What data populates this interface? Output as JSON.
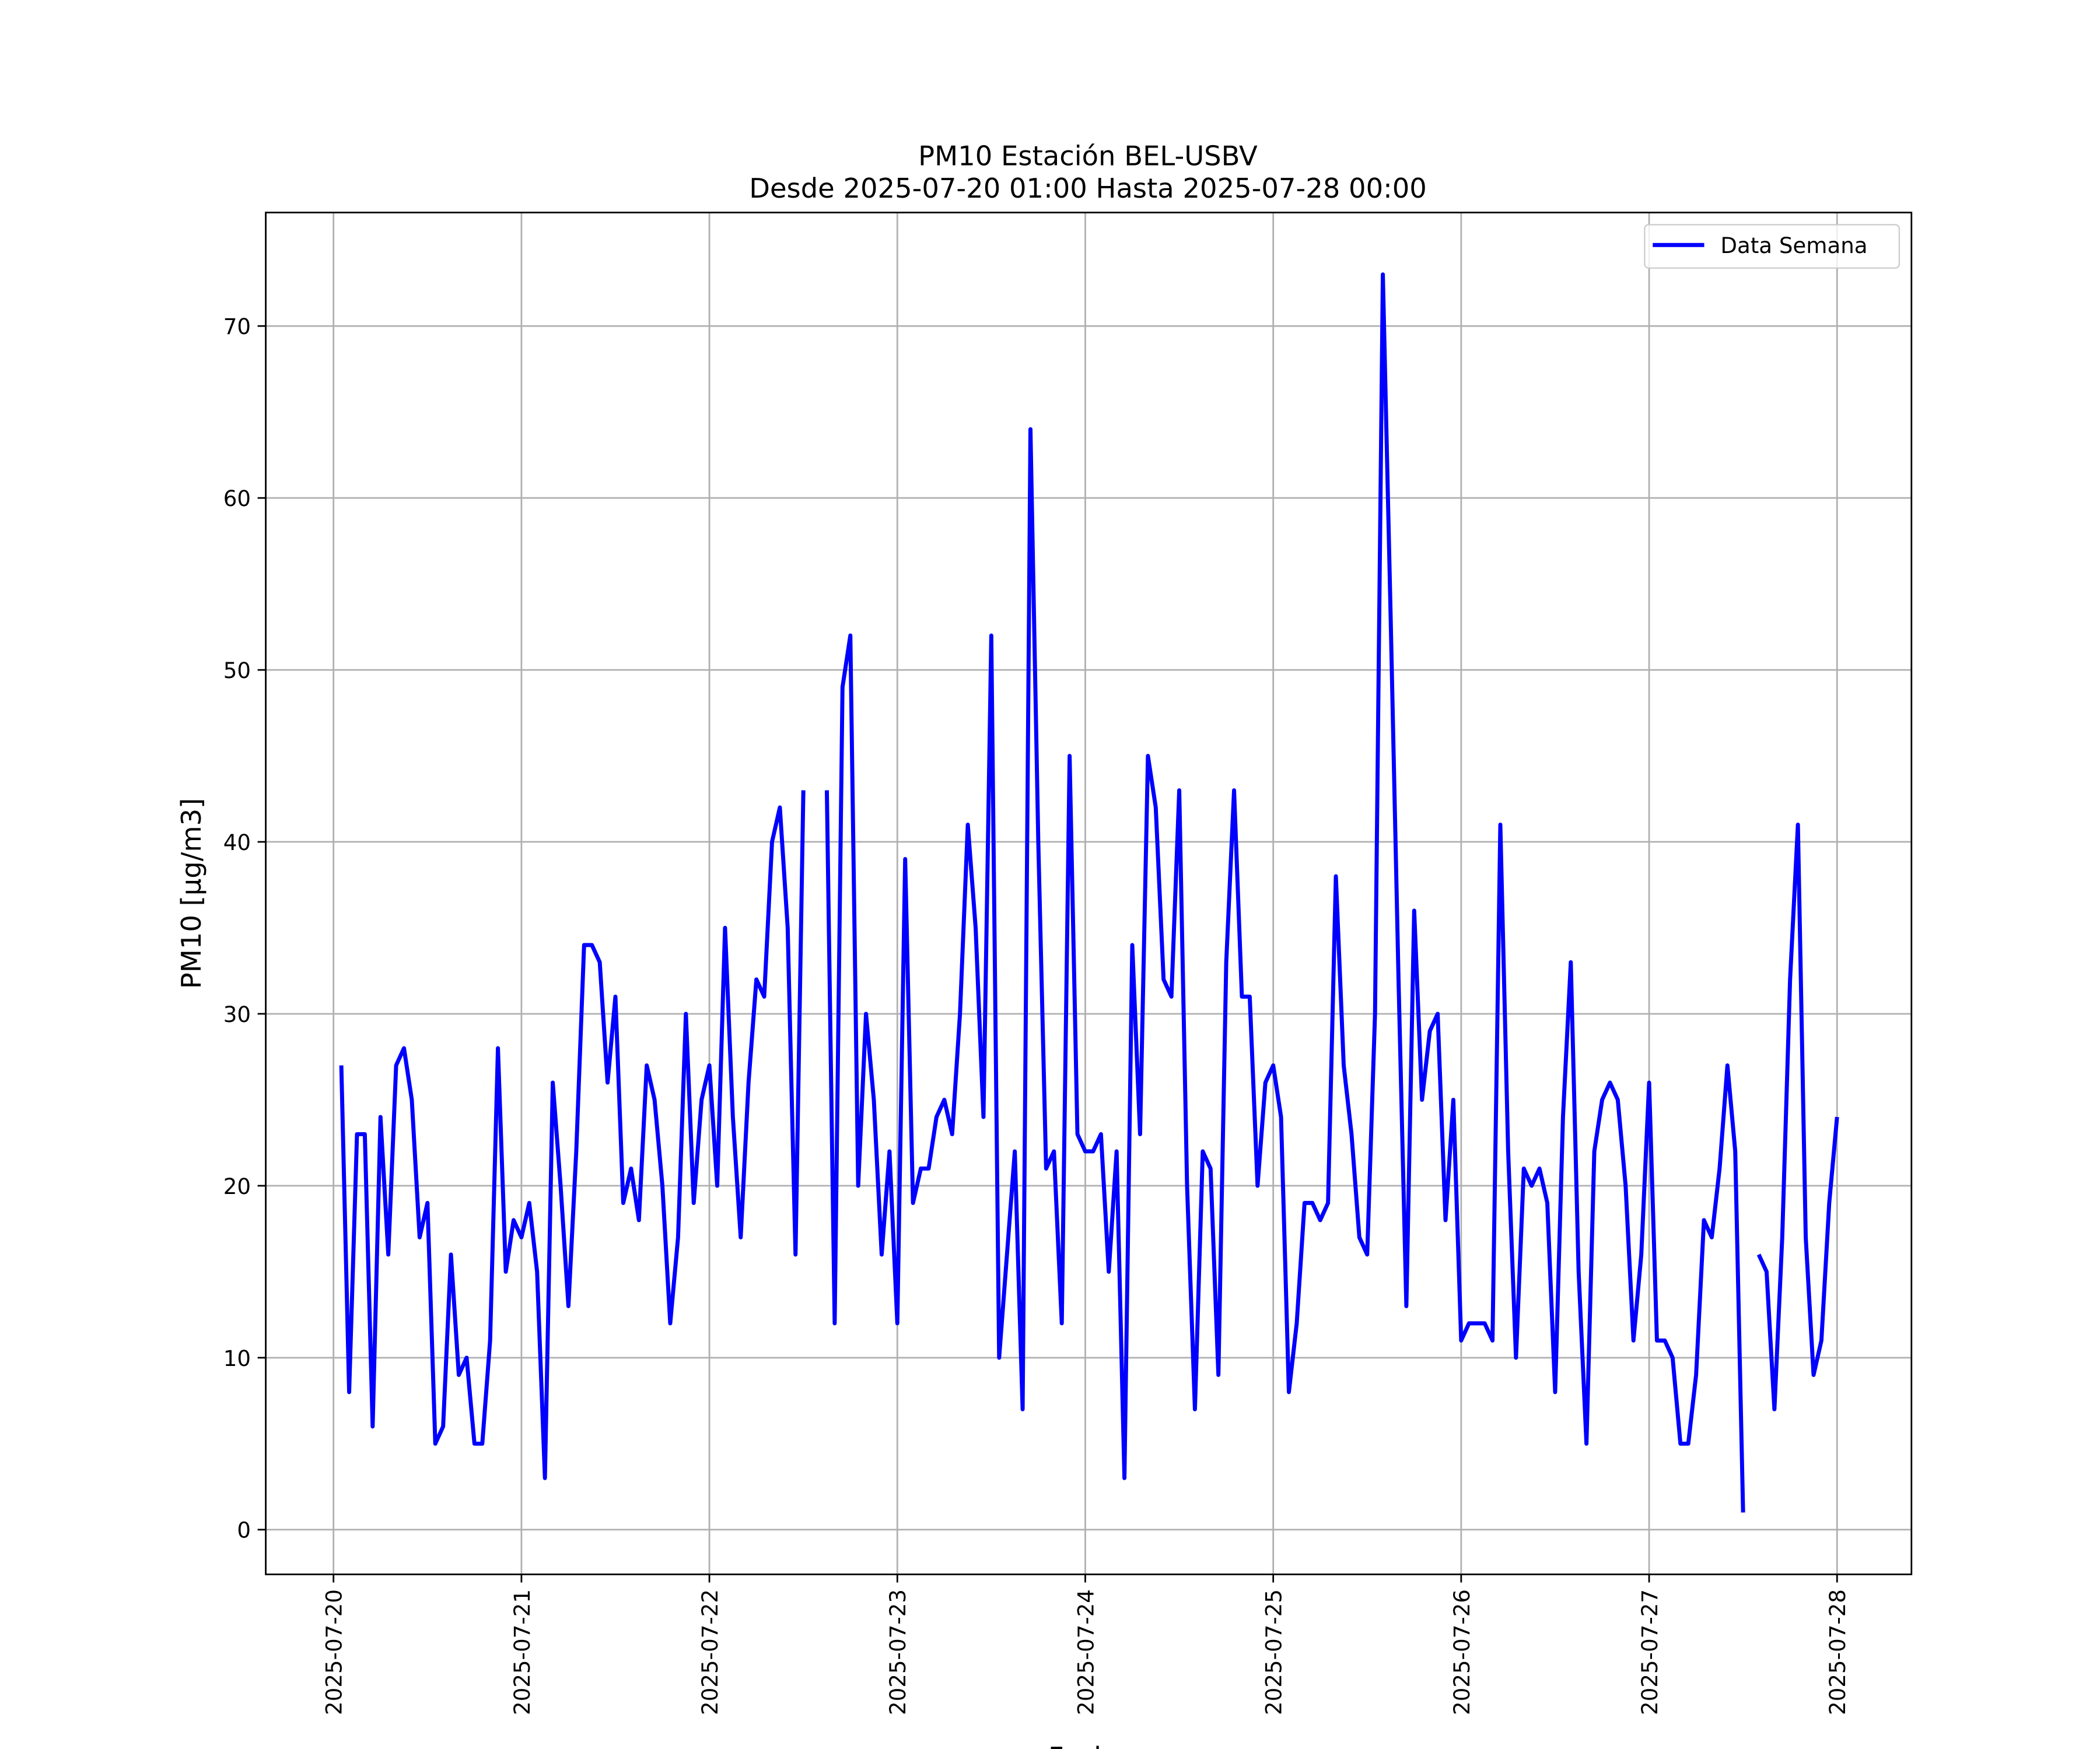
{
  "chart_data": {
    "type": "line",
    "title": "PM10 Estación BEL-USBV",
    "subtitle": "Desde 2025-07-20 01:00 Hasta 2025-07-28 00:00",
    "xlabel": "Fecha",
    "ylabel": "PM10 [μg/m3]",
    "x": [
      "2025-07-20 01:00",
      "2025-07-20 02:00",
      "2025-07-20 03:00",
      "2025-07-20 04:00",
      "2025-07-20 05:00",
      "2025-07-20 06:00",
      "2025-07-20 07:00",
      "2025-07-20 08:00",
      "2025-07-20 09:00",
      "2025-07-20 10:00",
      "2025-07-20 11:00",
      "2025-07-20 12:00",
      "2025-07-20 13:00",
      "2025-07-20 14:00",
      "2025-07-20 15:00",
      "2025-07-20 16:00",
      "2025-07-20 17:00",
      "2025-07-20 18:00",
      "2025-07-20 19:00",
      "2025-07-20 20:00",
      "2025-07-20 21:00",
      "2025-07-20 22:00",
      "2025-07-20 23:00",
      "2025-07-21 00:00",
      "2025-07-21 01:00",
      "2025-07-21 02:00",
      "2025-07-21 03:00",
      "2025-07-21 04:00",
      "2025-07-21 05:00",
      "2025-07-21 06:00",
      "2025-07-21 07:00",
      "2025-07-21 08:00",
      "2025-07-21 09:00",
      "2025-07-21 10:00",
      "2025-07-21 11:00",
      "2025-07-21 12:00",
      "2025-07-21 13:00",
      "2025-07-21 14:00",
      "2025-07-21 15:00",
      "2025-07-21 16:00",
      "2025-07-21 17:00",
      "2025-07-21 18:00",
      "2025-07-21 19:00",
      "2025-07-21 20:00",
      "2025-07-21 21:00",
      "2025-07-21 22:00",
      "2025-07-21 23:00",
      "2025-07-22 00:00",
      "2025-07-22 01:00",
      "2025-07-22 02:00",
      "2025-07-22 03:00",
      "2025-07-22 04:00",
      "2025-07-22 05:00",
      "2025-07-22 06:00",
      "2025-07-22 07:00",
      "2025-07-22 08:00",
      "2025-07-22 09:00",
      "2025-07-22 10:00",
      "2025-07-22 11:00",
      "2025-07-22 12:00",
      "2025-07-22 13:00",
      "2025-07-22 14:00",
      "2025-07-22 15:00",
      "2025-07-22 16:00",
      "2025-07-22 17:00",
      "2025-07-22 18:00",
      "2025-07-22 19:00",
      "2025-07-22 20:00",
      "2025-07-22 21:00",
      "2025-07-22 22:00",
      "2025-07-22 23:00",
      "2025-07-23 00:00",
      "2025-07-23 01:00",
      "2025-07-23 02:00",
      "2025-07-23 03:00",
      "2025-07-23 04:00",
      "2025-07-23 05:00",
      "2025-07-23 06:00",
      "2025-07-23 07:00",
      "2025-07-23 08:00",
      "2025-07-23 09:00",
      "2025-07-23 10:00",
      "2025-07-23 11:00",
      "2025-07-23 12:00",
      "2025-07-23 13:00",
      "2025-07-23 14:00",
      "2025-07-23 15:00",
      "2025-07-23 16:00",
      "2025-07-23 17:00",
      "2025-07-23 18:00",
      "2025-07-23 19:00",
      "2025-07-23 20:00",
      "2025-07-23 21:00",
      "2025-07-23 22:00",
      "2025-07-23 23:00",
      "2025-07-24 00:00",
      "2025-07-24 01:00",
      "2025-07-24 02:00",
      "2025-07-24 03:00",
      "2025-07-24 04:00",
      "2025-07-24 05:00",
      "2025-07-24 06:00",
      "2025-07-24 07:00",
      "2025-07-24 08:00",
      "2025-07-24 09:00",
      "2025-07-24 10:00",
      "2025-07-24 11:00",
      "2025-07-24 12:00",
      "2025-07-24 13:00",
      "2025-07-24 14:00",
      "2025-07-24 15:00",
      "2025-07-24 16:00",
      "2025-07-24 17:00",
      "2025-07-24 18:00",
      "2025-07-24 19:00",
      "2025-07-24 20:00",
      "2025-07-24 21:00",
      "2025-07-24 22:00",
      "2025-07-24 23:00",
      "2025-07-25 00:00",
      "2025-07-25 01:00",
      "2025-07-25 02:00",
      "2025-07-25 03:00",
      "2025-07-25 04:00",
      "2025-07-25 05:00",
      "2025-07-25 06:00",
      "2025-07-25 07:00",
      "2025-07-25 08:00",
      "2025-07-25 09:00",
      "2025-07-25 10:00",
      "2025-07-25 11:00",
      "2025-07-25 12:00",
      "2025-07-25 13:00",
      "2025-07-25 14:00",
      "2025-07-25 15:00",
      "2025-07-25 16:00",
      "2025-07-25 17:00",
      "2025-07-25 18:00",
      "2025-07-25 19:00",
      "2025-07-25 20:00",
      "2025-07-25 21:00",
      "2025-07-25 22:00",
      "2025-07-25 23:00",
      "2025-07-26 00:00",
      "2025-07-26 01:00",
      "2025-07-26 02:00",
      "2025-07-26 03:00",
      "2025-07-26 04:00",
      "2025-07-26 05:00",
      "2025-07-26 06:00",
      "2025-07-26 07:00",
      "2025-07-26 08:00",
      "2025-07-26 09:00",
      "2025-07-26 10:00",
      "2025-07-26 11:00",
      "2025-07-26 12:00",
      "2025-07-26 13:00",
      "2025-07-26 14:00",
      "2025-07-26 15:00",
      "2025-07-26 16:00",
      "2025-07-26 17:00",
      "2025-07-26 18:00",
      "2025-07-26 19:00",
      "2025-07-26 20:00",
      "2025-07-26 21:00",
      "2025-07-26 22:00",
      "2025-07-26 23:00",
      "2025-07-27 00:00",
      "2025-07-27 01:00",
      "2025-07-27 02:00",
      "2025-07-27 03:00",
      "2025-07-27 04:00",
      "2025-07-27 05:00",
      "2025-07-27 06:00",
      "2025-07-27 07:00",
      "2025-07-27 08:00",
      "2025-07-27 09:00",
      "2025-07-27 10:00",
      "2025-07-27 11:00",
      "2025-07-27 12:00",
      "2025-07-27 13:00",
      "2025-07-27 14:00",
      "2025-07-27 15:00",
      "2025-07-27 16:00",
      "2025-07-27 17:00",
      "2025-07-27 18:00",
      "2025-07-27 19:00",
      "2025-07-27 20:00",
      "2025-07-27 21:00",
      "2025-07-27 22:00",
      "2025-07-27 23:00",
      "2025-07-28 00:00"
    ],
    "series": [
      {
        "name": "Data Semana",
        "color": "#0000ff",
        "values": [
          27,
          8,
          23,
          23,
          6,
          24,
          16,
          27,
          28,
          25,
          17,
          19,
          5,
          6,
          16,
          9,
          10,
          5,
          5,
          11,
          28,
          15,
          18,
          17,
          19,
          15,
          3,
          26,
          20,
          13,
          22,
          34,
          34,
          33,
          26,
          31,
          19,
          21,
          18,
          27,
          25,
          20,
          12,
          17,
          30,
          19,
          25,
          27,
          20,
          35,
          24,
          17,
          26,
          32,
          31,
          40,
          42,
          35,
          16,
          43,
          null,
          null,
          43,
          12,
          49,
          52,
          20,
          30,
          25,
          16,
          22,
          12,
          39,
          19,
          21,
          21,
          24,
          25,
          23,
          30,
          41,
          35,
          24,
          52,
          10,
          16,
          22,
          7,
          64,
          40,
          21,
          22,
          12,
          45,
          23,
          22,
          22,
          23,
          15,
          22,
          3,
          34,
          23,
          45,
          42,
          32,
          31,
          43,
          20,
          7,
          22,
          21,
          9,
          33,
          43,
          31,
          31,
          20,
          26,
          27,
          24,
          8,
          12,
          19,
          19,
          18,
          19,
          38,
          27,
          23,
          17,
          16,
          30,
          73,
          53,
          32,
          13,
          36,
          25,
          29,
          30,
          18,
          25,
          11,
          12,
          12,
          12,
          11,
          41,
          22,
          10,
          21,
          20,
          21,
          19,
          8,
          24,
          33,
          15,
          5,
          22,
          25,
          26,
          25,
          20,
          11,
          16,
          26,
          11,
          11,
          10,
          5,
          5,
          9,
          18,
          17,
          21,
          27,
          22,
          1,
          null,
          16,
          15,
          7,
          17,
          32,
          41,
          17,
          9,
          11,
          19,
          24
        ]
      }
    ],
    "xlim": [
      "2025-07-19 15:21",
      "2025-07-28 09:30"
    ],
    "xticks": [
      "2025-07-20",
      "2025-07-21",
      "2025-07-22",
      "2025-07-23",
      "2025-07-24",
      "2025-07-25",
      "2025-07-26",
      "2025-07-27",
      "2025-07-28"
    ],
    "ylim": [
      -2.6,
      76.6
    ],
    "yticks": [
      0,
      10,
      20,
      30,
      40,
      50,
      60,
      70
    ],
    "grid": true,
    "legend": "upper right"
  }
}
